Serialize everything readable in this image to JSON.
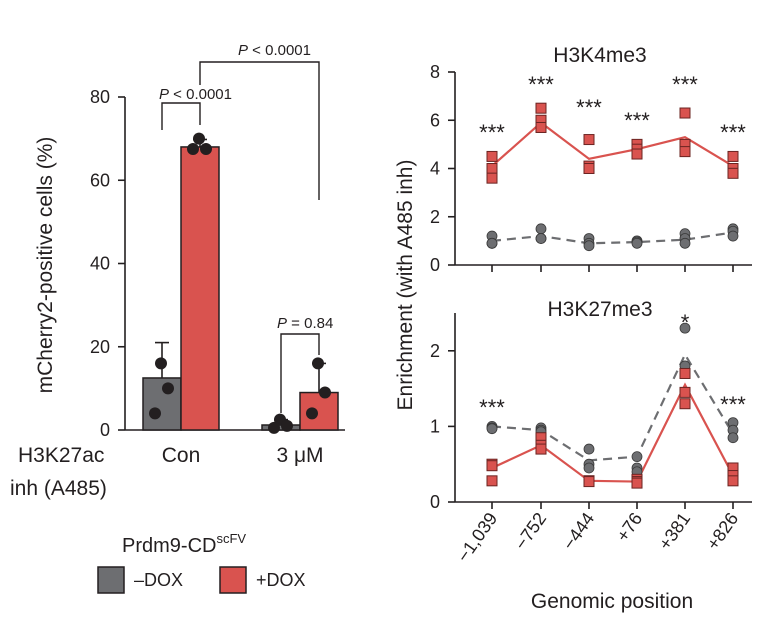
{
  "colors": {
    "dox_minus": "#6d6e71",
    "dox_plus": "#d9534f",
    "line": "#231f20"
  },
  "legend": {
    "title": "Prdm9-CD",
    "title_superscript": "scFV",
    "items": [
      {
        "label": "–DOX",
        "color": "#6d6e71"
      },
      {
        "label": "+DOX",
        "color": "#d9534f"
      }
    ]
  },
  "chart_data": [
    {
      "type": "bar",
      "title": "",
      "ylabel": "mCherry2-positive cells (%)",
      "xlabel_row_label": "H3K27ac",
      "xlabel_row_label_line2": "inh (A485)",
      "ylim": [
        0,
        80
      ],
      "yticks": [
        0,
        20,
        40,
        60,
        80
      ],
      "categories": [
        "Con",
        "3 μM"
      ],
      "series": [
        {
          "name": "–DOX",
          "values": [
            12.5,
            1.2
          ],
          "errors": [
            8.5,
            1.3
          ],
          "points": [
            [
              16,
              10,
              4
            ],
            [
              2.5,
              1,
              0.5
            ]
          ]
        },
        {
          "name": "+DOX",
          "values": [
            68,
            9
          ],
          "errors": [
            1.8,
            7
          ],
          "points": [
            [
              70,
              67.5,
              67.5
            ],
            [
              16,
              9,
              4
            ]
          ]
        }
      ],
      "annotations": [
        {
          "p_label": "P",
          "text": " < 0.0001",
          "between": "Con–DOX vs Con+DOX"
        },
        {
          "p_label": "P",
          "text": " < 0.0001",
          "between": "Con vs 3 μM (+DOX)"
        },
        {
          "p_label": "P",
          "text": " = 0.84",
          "between": "3 μM–DOX vs 3 μM+DOX"
        }
      ]
    },
    {
      "type": "line",
      "title": "H3K4me3",
      "ylabel": "Enrichment (with A485 inh)",
      "xlabel": "Genomic position",
      "x": [
        "−1,039",
        "−752",
        "−444",
        "+76",
        "+381",
        "+826"
      ],
      "ylim": [
        0,
        8
      ],
      "yticks": [
        0,
        2,
        4,
        6,
        8
      ],
      "series": [
        {
          "name": "+DOX",
          "style": "solid",
          "values": [
            4.1,
            5.9,
            4.4,
            4.8,
            5.3,
            4.1
          ],
          "points": [
            [
              4.5,
              4.0,
              3.6
            ],
            [
              6.5,
              6.0,
              5.7
            ],
            [
              5.2,
              4.1,
              4.0
            ],
            [
              5.0,
              4.8,
              4.6
            ],
            [
              6.3,
              5.0,
              4.7
            ],
            [
              4.5,
              4.0,
              3.8
            ]
          ]
        },
        {
          "name": "–DOX",
          "style": "dashed",
          "values": [
            1.0,
            1.2,
            0.9,
            0.95,
            1.05,
            1.35
          ],
          "points": [
            [
              1.2,
              0.9,
              0.9
            ],
            [
              1.5,
              1.1,
              1.1
            ],
            [
              1.1,
              0.9,
              0.8
            ],
            [
              1.0,
              0.95,
              0.9
            ],
            [
              1.3,
              1.1,
              0.9
            ],
            [
              1.5,
              1.4,
              1.2
            ]
          ]
        }
      ],
      "significance": [
        "***",
        "***",
        "***",
        "***",
        "***",
        "***"
      ]
    },
    {
      "type": "line",
      "title": "H3K27me3",
      "ylabel": "Enrichment (with A485 inh)",
      "xlabel": "Genomic position",
      "x": [
        "−1,039",
        "−752",
        "−444",
        "+76",
        "+381",
        "+826"
      ],
      "ylim": [
        0,
        2.5
      ],
      "yticks": [
        0,
        1,
        2
      ],
      "series": [
        {
          "name": "–DOX",
          "style": "dashed",
          "values": [
            1.0,
            0.95,
            0.55,
            0.6,
            1.95,
            0.9
          ],
          "points": [
            [
              1.0,
              0.98,
              0.97
            ],
            [
              0.98,
              0.95,
              0.93
            ],
            [
              0.7,
              0.5,
              0.45
            ],
            [
              0.6,
              0.45,
              0.4
            ],
            [
              2.3,
              1.8,
              1.7
            ],
            [
              1.05,
              0.95,
              0.85
            ]
          ]
        },
        {
          "name": "+DOX",
          "style": "solid",
          "values": [
            0.45,
            0.75,
            0.28,
            0.27,
            1.55,
            0.35
          ],
          "points": [
            [
              0.5,
              0.48,
              0.28
            ],
            [
              0.85,
              0.75,
              0.7
            ],
            [
              0.28,
              0.28,
              0.27
            ],
            [
              0.3,
              0.27,
              0.25
            ],
            [
              1.7,
              1.45,
              1.3
            ],
            [
              0.45,
              0.35,
              0.28
            ]
          ]
        }
      ],
      "significance": [
        "***",
        "",
        "",
        "",
        "*",
        "***"
      ]
    }
  ]
}
